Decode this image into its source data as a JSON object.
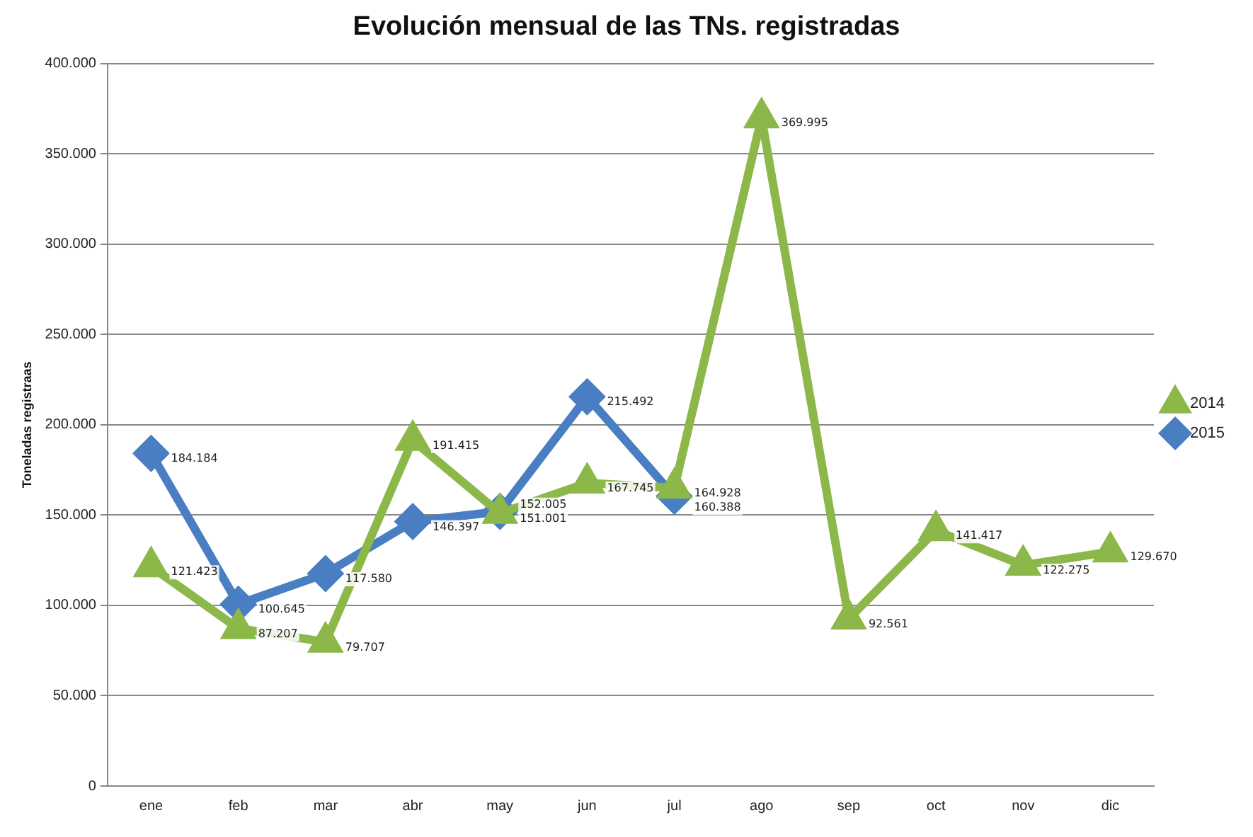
{
  "chart_data": {
    "type": "line",
    "title": "Evolución mensual de las TNs. registradas",
    "ylabel": "Toneladas registraas",
    "categories": [
      "ene",
      "feb",
      "mar",
      "abr",
      "may",
      "jun",
      "jul",
      "ago",
      "sep",
      "oct",
      "nov",
      "dic"
    ],
    "series": [
      {
        "name": "2014",
        "color": "#8cb84a",
        "marker": "triangle",
        "values": [
          121423,
          87207,
          79707,
          191415,
          151001,
          167745,
          164928,
          369995,
          92561,
          141417,
          122275,
          129670
        ],
        "value_labels": [
          "121.423",
          "87.207",
          "79.707",
          "191.415",
          "151.001",
          "167.745",
          "164.928",
          "369.995",
          "92.561",
          "141.417",
          "122.275",
          "129.670"
        ]
      },
      {
        "name": "2015",
        "color": "#4a7ec2",
        "marker": "diamond",
        "values": [
          184184,
          100645,
          117580,
          146397,
          152005,
          215492,
          160388,
          null,
          null,
          null,
          null,
          null
        ],
        "value_labels": [
          "184.184",
          "100.645",
          "117.580",
          "146.397",
          "152.005",
          "215.492",
          "160.388",
          null,
          null,
          null,
          null,
          null
        ]
      }
    ],
    "ylim": [
      0,
      400000
    ],
    "yticks": [
      {
        "value": 0,
        "label": "0"
      },
      {
        "value": 50000,
        "label": "50.000"
      },
      {
        "value": 100000,
        "label": "100.000"
      },
      {
        "value": 150000,
        "label": "150.000"
      },
      {
        "value": 200000,
        "label": "200.000"
      },
      {
        "value": 250000,
        "label": "250.000"
      },
      {
        "value": 300000,
        "label": "300.000"
      },
      {
        "value": 350000,
        "label": "350.000"
      },
      {
        "value": 400000,
        "label": "400.000"
      }
    ],
    "grid": "y",
    "legend": "right"
  }
}
